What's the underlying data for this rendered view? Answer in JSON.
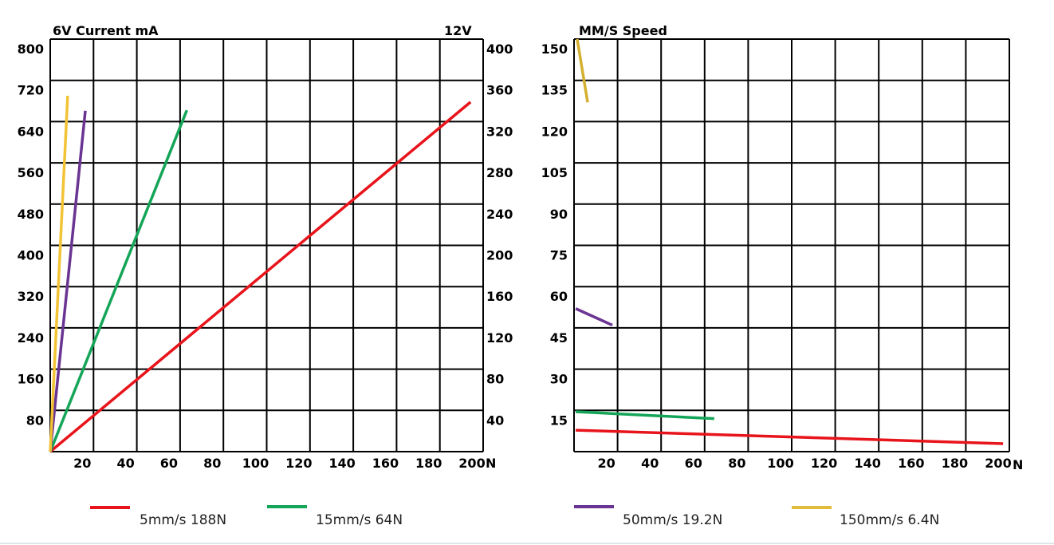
{
  "chart_data": [
    {
      "type": "line",
      "title": "6V Current mA",
      "right_title": "12V",
      "xlabel": "N",
      "xlim": [
        0,
        206
      ],
      "ylim": [
        0,
        800
      ],
      "y2lim": [
        0,
        400
      ],
      "x_ticks": [
        "20",
        "40",
        "60",
        "80",
        "100",
        "120",
        "140",
        "160",
        "180",
        "200"
      ],
      "y_ticks": [
        "80",
        "160",
        "240",
        "320",
        "400",
        "480",
        "560",
        "640",
        "720",
        "800"
      ],
      "y2_ticks": [
        "40",
        "80",
        "120",
        "160",
        "200",
        "240",
        "280",
        "320",
        "360",
        "400"
      ],
      "grid": true,
      "series": [
        {
          "name": "5mm/s 188N",
          "color": "#e8141b",
          "points": [
            [
              0,
              0
            ],
            [
              200,
              678
            ]
          ]
        },
        {
          "name": "15mm/s 64N",
          "color": "#15a558",
          "points": [
            [
              0,
              0
            ],
            [
              65,
              662
            ]
          ]
        },
        {
          "name": "50mm/s 19.2N",
          "color": "#6a3592",
          "points": [
            [
              0,
              0
            ],
            [
              16.7,
              661
            ]
          ]
        },
        {
          "name": "150mm/s 6.4N",
          "color": "#f2c335",
          "points": [
            [
              0,
              0
            ],
            [
              8.3,
              690
            ]
          ]
        }
      ]
    },
    {
      "type": "line",
      "title": "MM/S Speed",
      "xlabel": "N",
      "xlim": [
        0,
        208
      ],
      "ylim": [
        0,
        150
      ],
      "x_ticks": [
        "20",
        "40",
        "60",
        "80",
        "100",
        "120",
        "140",
        "160",
        "180",
        "200"
      ],
      "y_ticks": [
        "15",
        "30",
        "45",
        "60",
        "75",
        "90",
        "105",
        "120",
        "135",
        "150"
      ],
      "grid": true,
      "series": [
        {
          "name": "5mm/s 188N",
          "color": "#e8141b",
          "points": [
            [
              0.8,
              7.8
            ],
            [
              205,
              2.9
            ]
          ]
        },
        {
          "name": "15mm/s 64N",
          "color": "#15a558",
          "points": [
            [
              0.8,
              14.5
            ],
            [
              67,
              12
            ]
          ]
        },
        {
          "name": "50mm/s 19.2N",
          "color": "#6a3592",
          "points": [
            [
              0.8,
              52
            ],
            [
              18.3,
              46
            ]
          ]
        },
        {
          "name": "150mm/s 6.4N",
          "color": "#d4b030",
          "points": [
            [
              1.5,
              150
            ],
            [
              6.5,
              127
            ]
          ]
        }
      ]
    }
  ],
  "legend": [
    {
      "label": "5mm/s 188N",
      "color": "#e8141b"
    },
    {
      "label": "15mm/s 64N",
      "color": "#15a558"
    },
    {
      "label": "50mm/s 19.2N",
      "color": "#6a3592"
    },
    {
      "label": "150mm/s 6.4N",
      "color": "#e0bc3a"
    }
  ]
}
